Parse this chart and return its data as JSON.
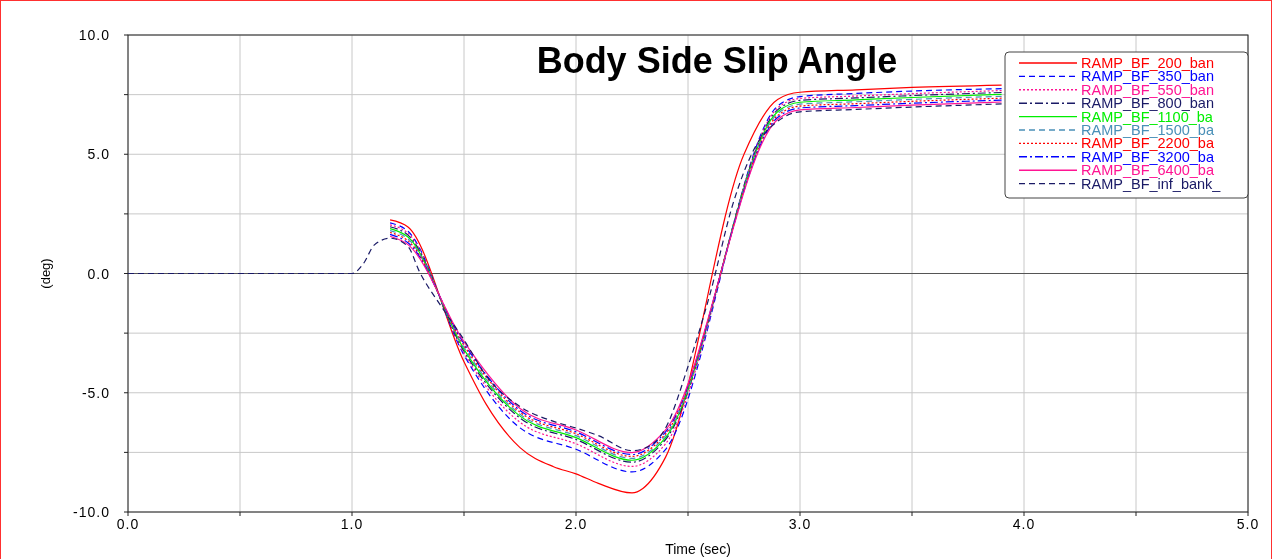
{
  "chart_data": {
    "type": "line",
    "title": "Body Side Slip Angle",
    "xlabel": "Time (sec)",
    "ylabel": "(deg)",
    "x": [
      1.17,
      1.25,
      1.5,
      1.75,
      2.0,
      2.25,
      2.4,
      2.9,
      3.0,
      3.25,
      3.5,
      3.9
    ],
    "xlim": [
      0,
      5
    ],
    "ylim": [
      -10,
      10
    ],
    "xticks": [
      {
        "value": 0,
        "label": "0.0"
      },
      {
        "value": 0.5,
        "label": null
      },
      {
        "value": 1,
        "label": "1.0"
      },
      {
        "value": 1.5,
        "label": null
      },
      {
        "value": 2,
        "label": "2.0"
      },
      {
        "value": 2.5,
        "label": null
      },
      {
        "value": 3,
        "label": "3.0"
      },
      {
        "value": 3.5,
        "label": null
      },
      {
        "value": 4,
        "label": "4.0"
      },
      {
        "value": 4.5,
        "label": null
      },
      {
        "value": 5,
        "label": "5.0"
      }
    ],
    "yticks": [
      {
        "value": -10,
        "label": "-10.0"
      },
      {
        "value": -7.5,
        "label": null
      },
      {
        "value": -5,
        "label": "-5.0"
      },
      {
        "value": -2.5,
        "label": null
      },
      {
        "value": 0,
        "label": "0.0"
      },
      {
        "value": 2.5,
        "label": null
      },
      {
        "value": 5,
        "label": "5.0"
      },
      {
        "value": 7.5,
        "label": null
      },
      {
        "value": 10,
        "label": "10.0"
      }
    ],
    "grid": true,
    "legend": "top right",
    "ref_lines": [
      {
        "axis": "y",
        "value": 0,
        "color": "#555555"
      }
    ],
    "series": [
      {
        "name": "RAMP_BF_200_ban",
        "color": "#ff0000",
        "line_style": "solid",
        "x": [
          1.17,
          1.25,
          1.5,
          1.6,
          1.75,
          1.9,
          2.0,
          2.1,
          2.25,
          2.3,
          2.4,
          2.75,
          2.9,
          3.0,
          3.25,
          3.5,
          3.9
        ],
        "values": [
          2.25,
          1.95,
          -3.7,
          -5.5,
          -7.3,
          -8.1,
          -8.4,
          -8.8,
          -9.2,
          -9.0,
          -7.7,
          5.0,
          7.3,
          7.6,
          7.7,
          7.8,
          7.9
        ]
      },
      {
        "name": "RAMP_BF_350_ban",
        "color": "#0000ff",
        "line_style": "dashed",
        "values": [
          2.12,
          1.77,
          -3.42,
          -6.47,
          -7.37,
          -8.32,
          -7.37,
          7.02,
          7.42,
          7.55,
          7.65,
          7.75
        ]
      },
      {
        "name": "RAMP_BF_550_ban",
        "color": "#ff1493",
        "line_style": "dotted",
        "values": [
          2.04,
          1.69,
          -3.34,
          -6.24,
          -7.14,
          -8.09,
          -7.14,
          6.94,
          7.34,
          7.44,
          7.54,
          7.67
        ]
      },
      {
        "name": "RAMP_BF_800_ban",
        "color": "#1a1a66",
        "line_style": "dashdot",
        "values": [
          1.96,
          1.61,
          -3.26,
          -6.06,
          -6.96,
          -7.91,
          -6.96,
          6.86,
          7.26,
          7.36,
          7.46,
          7.59
        ]
      },
      {
        "name": "RAMP_BF_1100_ba",
        "color": "#00ee00",
        "line_style": "solid",
        "values": [
          1.88,
          1.53,
          -3.18,
          -5.98,
          -6.88,
          -7.83,
          -6.88,
          6.78,
          7.18,
          7.28,
          7.38,
          7.51
        ]
      },
      {
        "name": "RAMP_BF_1500_ba",
        "color": "#4a90b8",
        "line_style": "dashed",
        "values": [
          1.8,
          1.45,
          -3.1,
          -5.9,
          -6.8,
          -7.75,
          -6.8,
          6.7,
          7.1,
          7.2,
          7.3,
          7.43
        ]
      },
      {
        "name": "RAMP_BF_2200_ba",
        "color": "#ff0000",
        "line_style": "dotted",
        "values": [
          1.72,
          1.37,
          -3.02,
          -5.82,
          -6.72,
          -7.67,
          -6.72,
          6.62,
          7.02,
          7.12,
          7.22,
          7.35
        ]
      },
      {
        "name": "RAMP_BF_3200_ba",
        "color": "#0000ff",
        "line_style": "dashdot",
        "values": [
          1.64,
          1.29,
          -2.94,
          -5.74,
          -6.64,
          -7.59,
          -6.64,
          6.54,
          6.94,
          7.04,
          7.14,
          7.27
        ]
      },
      {
        "name": "RAMP_BF_6400_ba",
        "color": "#ff1493",
        "line_style": "solid",
        "values": [
          1.56,
          1.21,
          -2.86,
          -5.66,
          -6.56,
          -7.51,
          -6.56,
          6.46,
          6.86,
          6.96,
          7.06,
          7.19
        ]
      },
      {
        "name": "RAMP_BF_inf_bank_",
        "color": "#1a1a66",
        "line_style": "dashed",
        "x": [
          0,
          1.0,
          1.05,
          1.1,
          1.17,
          1.25,
          1.3,
          1.4,
          1.5,
          1.6,
          1.75,
          1.9,
          2.0,
          2.1,
          2.25,
          2.3,
          2.4,
          2.5,
          2.6,
          2.7,
          2.8,
          2.9,
          3.0,
          3.25,
          3.5,
          3.9
        ],
        "values": [
          0,
          0,
          0.4,
          1.2,
          1.48,
          1.13,
          0.1,
          -1.4,
          -2.78,
          -4.3,
          -5.58,
          -6.2,
          -6.48,
          -6.8,
          -7.43,
          -7.35,
          -6.48,
          -3.9,
          -0.8,
          2.9,
          5.3,
          6.38,
          6.78,
          6.88,
          6.98,
          7.11
        ]
      }
    ]
  }
}
